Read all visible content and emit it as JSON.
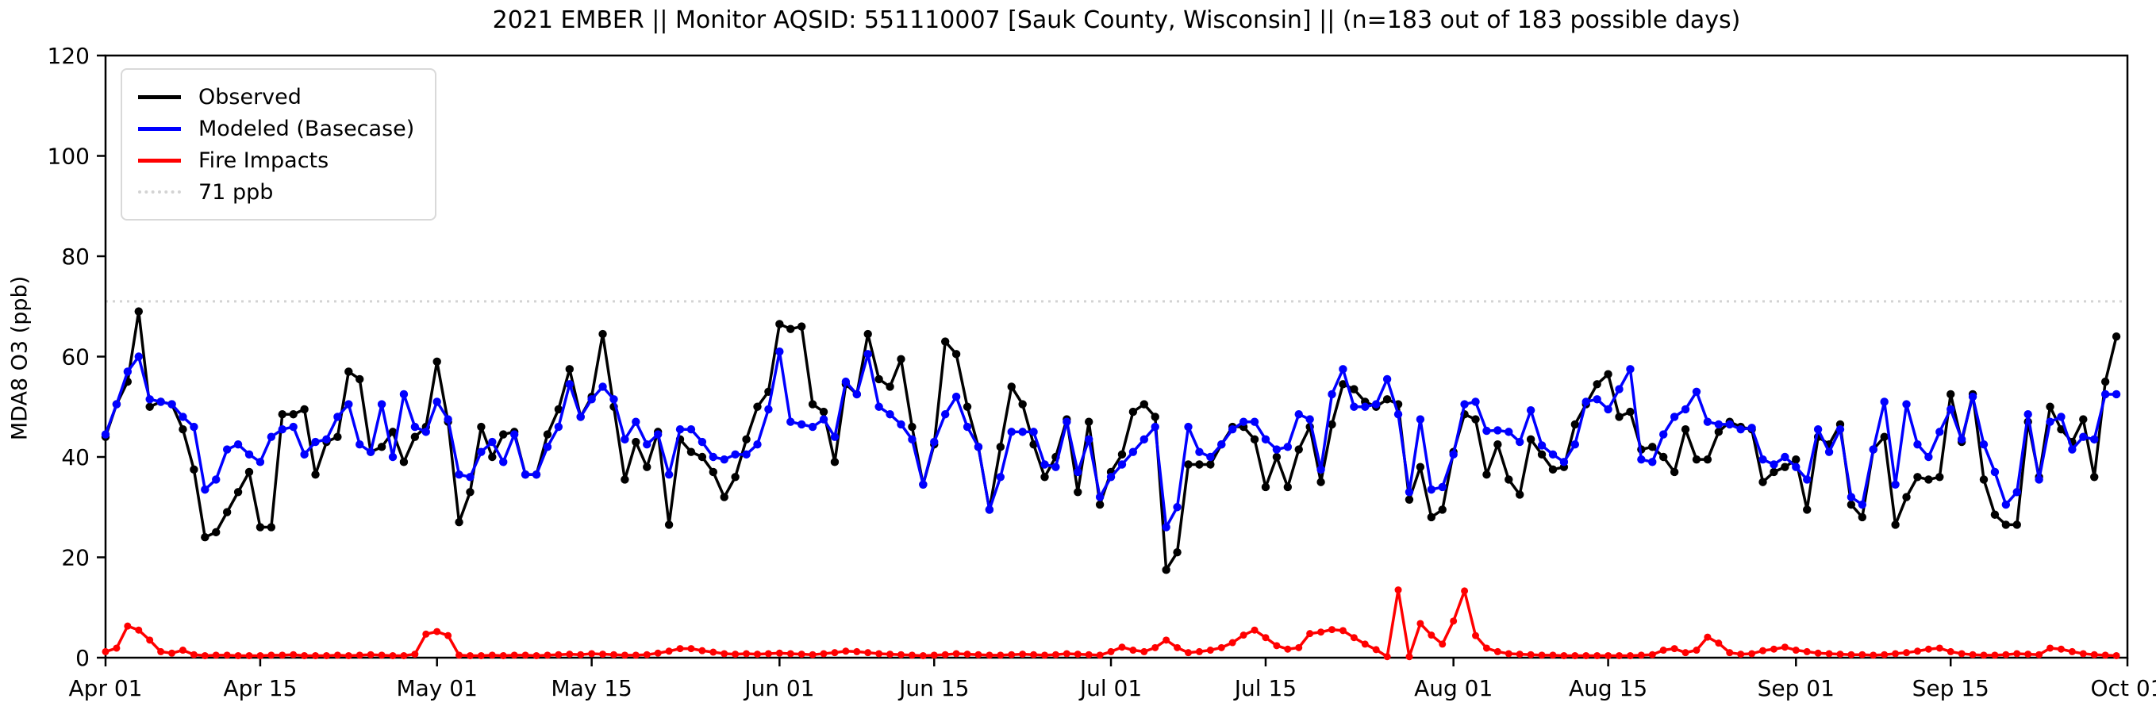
{
  "chart_data": {
    "type": "line",
    "title": "2021 EMBER || Monitor AQSID: 551110007 [Sauk County, Wisconsin] || (n=183 out of 183 possible days)",
    "ylabel": "MDA8 O3 (ppb)",
    "xlabel": "",
    "ylim": [
      0,
      120
    ],
    "y_ticks": [
      0,
      20,
      40,
      60,
      80,
      100,
      120
    ],
    "n_days": 183,
    "grid": false,
    "legend_position": "upper-left",
    "x_ticks": [
      {
        "label": "Apr 01",
        "day": 0
      },
      {
        "label": "Apr 15",
        "day": 14
      },
      {
        "label": "May 01",
        "day": 30
      },
      {
        "label": "May 15",
        "day": 44
      },
      {
        "label": "Jun 01",
        "day": 61
      },
      {
        "label": "Jun 15",
        "day": 75
      },
      {
        "label": "Jul 01",
        "day": 91
      },
      {
        "label": "Jul 15",
        "day": 105
      },
      {
        "label": "Aug 01",
        "day": 122
      },
      {
        "label": "Aug 15",
        "day": 136
      },
      {
        "label": "Sep 01",
        "day": 153
      },
      {
        "label": "Sep 15",
        "day": 167
      },
      {
        "label": "Oct 01",
        "day": 183
      }
    ],
    "threshold": {
      "value": 71,
      "label": "71 ppb",
      "color": "#d3d3d3"
    },
    "series": [
      {
        "name": "Observed",
        "color": "#000000",
        "values": [
          44,
          50.5,
          55,
          69,
          50,
          51,
          50.5,
          45.5,
          37.5,
          24,
          25,
          29,
          33,
          37,
          26,
          26,
          48.5,
          48.5,
          49.5,
          36.5,
          43,
          44,
          57,
          55.5,
          41,
          42,
          45,
          39,
          44,
          46,
          59,
          47,
          27,
          33,
          46,
          40,
          44.5,
          45,
          36.5,
          36.5,
          44.5,
          49.5,
          57.5,
          48,
          52,
          64.5,
          50,
          35.5,
          43,
          38,
          45,
          26.5,
          43.5,
          41,
          40,
          37,
          32,
          36,
          43.5,
          50,
          53,
          66.5,
          65.5,
          66,
          50.5,
          49,
          39,
          54.5,
          52.5,
          64.5,
          55.5,
          54,
          59.5,
          46,
          34.5,
          42.5,
          63,
          60.5,
          50,
          42,
          29.5,
          42,
          54,
          50.5,
          42.5,
          36,
          40,
          47.5,
          33,
          47,
          30.5,
          37,
          40.5,
          49,
          50.5,
          48,
          17.5,
          21,
          38.5,
          38.5,
          38.5,
          42.5,
          46,
          46,
          43.5,
          34,
          40,
          34,
          41.5,
          46,
          35,
          46.5,
          54.5,
          53.5,
          51,
          50,
          51.5,
          50.5,
          31.5,
          38,
          28,
          29.5,
          41,
          48.5,
          47.5,
          36.5,
          42.5,
          35.5,
          32.5,
          43.5,
          40.5,
          37.5,
          38,
          46.5,
          50.5,
          54.5,
          56.5,
          48,
          49,
          41.5,
          42,
          40,
          37,
          45.5,
          39.5,
          39.5,
          45,
          47,
          46,
          45.5,
          35,
          37,
          38,
          39.5,
          29.5,
          44,
          42.5,
          46.5,
          30.5,
          28,
          41.5,
          44,
          26.5,
          32,
          36,
          35.5,
          36,
          52.5,
          43,
          52.5,
          35.5,
          28.5,
          26.5,
          26.5,
          47,
          36,
          50,
          45.5,
          43,
          47.5,
          36,
          55,
          64
        ]
      },
      {
        "name": "Modeled (Basecase)",
        "color": "#0000ff",
        "values": [
          44.5,
          50.5,
          57,
          60,
          51.5,
          51,
          50.5,
          48,
          46,
          33.5,
          35.5,
          41.5,
          42.5,
          40.5,
          39,
          44,
          45.5,
          46,
          40.5,
          43,
          43.5,
          48,
          50.5,
          42.5,
          41,
          50.5,
          40,
          52.5,
          46,
          45,
          51,
          47.5,
          36.5,
          36,
          41,
          43,
          39,
          44.5,
          36.5,
          36.5,
          42,
          46,
          54.5,
          48,
          51.5,
          54,
          51.5,
          43.5,
          47,
          42.5,
          44.5,
          36.5,
          45.5,
          45.5,
          43,
          40,
          39.5,
          40.5,
          40.5,
          42.5,
          49.5,
          61,
          47,
          46.5,
          46,
          47.5,
          44,
          55,
          52.5,
          60.5,
          50,
          48.5,
          46.5,
          43.5,
          34.5,
          43,
          48.5,
          52,
          46,
          42,
          29.5,
          36,
          45,
          45,
          45,
          38.5,
          38,
          47,
          37,
          43.5,
          32,
          36,
          38.5,
          41,
          43.5,
          46,
          26,
          30,
          46,
          41,
          40,
          42.5,
          45.5,
          47,
          47,
          43.5,
          41.5,
          42,
          48.5,
          47.5,
          37.5,
          52.5,
          57.5,
          50,
          50,
          50.5,
          55.5,
          48.5,
          33,
          47.5,
          33.5,
          34,
          40.5,
          50.5,
          51,
          45.2,
          45.3,
          45,
          43,
          49.3,
          42.3,
          40.5,
          39,
          42.5,
          51,
          51.5,
          49.5,
          53.5,
          57.5,
          39.5,
          39,
          44.5,
          48,
          49.5,
          53,
          47,
          46.5,
          46.5,
          45.5,
          45.8,
          39.5,
          38.5,
          40,
          38,
          35.5,
          45.5,
          41,
          45.5,
          32,
          30.5,
          41.5,
          51,
          34.5,
          50.5,
          42.5,
          40,
          45,
          49.5,
          43.5,
          52,
          42.5,
          37,
          30.5,
          33,
          48.5,
          35.5,
          47,
          48,
          41.5,
          44,
          43.5,
          52.5,
          52.5
        ]
      },
      {
        "name": "Fire Impacts",
        "color": "#ff0000",
        "values": [
          1.2,
          1.9,
          6.3,
          5.5,
          3.5,
          1.2,
          0.9,
          1.5,
          0.6,
          0.4,
          0.5,
          0.5,
          0.4,
          0.4,
          0.4,
          0.5,
          0.5,
          0.6,
          0.4,
          0.4,
          0.4,
          0.5,
          0.4,
          0.5,
          0.6,
          0.5,
          0.4,
          0.4,
          0.7,
          4.7,
          5.2,
          4.4,
          0.5,
          0.4,
          0.4,
          0.5,
          0.4,
          0.5,
          0.5,
          0.4,
          0.5,
          0.6,
          0.7,
          0.6,
          0.8,
          0.7,
          0.6,
          0.5,
          0.5,
          0.6,
          0.9,
          1.3,
          1.8,
          1.8,
          1.4,
          1.1,
          0.8,
          0.7,
          0.8,
          0.7,
          0.8,
          0.9,
          0.8,
          0.7,
          0.6,
          0.8,
          1,
          1.3,
          1.2,
          1,
          0.8,
          0.7,
          0.6,
          0.5,
          0.4,
          0.5,
          0.6,
          0.8,
          0.7,
          0.6,
          0.5,
          0.5,
          0.6,
          0.7,
          0.6,
          0.5,
          0.6,
          0.8,
          0.7,
          0.6,
          0.5,
          1.2,
          2.1,
          1.5,
          1.2,
          2,
          3.5,
          2,
          1,
          1.2,
          1.5,
          2,
          3,
          4.5,
          5.5,
          4,
          2.4,
          1.7,
          2,
          4.8,
          5.1,
          5.6,
          5.4,
          4,
          2.7,
          1.6,
          0.2,
          13.5,
          0.2,
          6.8,
          4.5,
          2.7,
          7.3,
          13.3,
          4.4,
          1.9,
          1.2,
          0.8,
          0.7,
          0.6,
          0.5,
          0.5,
          0.4,
          0.4,
          0.4,
          0.4,
          0.4,
          0.4,
          0.4,
          0.5,
          0.6,
          1.5,
          1.8,
          1,
          1.5,
          4.1,
          2.9,
          1,
          0.7,
          0.8,
          1.4,
          1.7,
          2.1,
          1.5,
          1.2,
          0.9,
          0.8,
          0.7,
          0.6,
          0.6,
          0.5,
          0.6,
          0.8,
          1,
          1.3,
          1.7,
          1.9,
          1.2,
          0.8,
          0.6,
          0.5,
          0.5,
          0.6,
          0.8,
          0.7,
          0.6,
          1.9,
          1.7,
          1.2,
          0.8,
          0.6,
          0.5,
          0.4
        ]
      }
    ]
  }
}
